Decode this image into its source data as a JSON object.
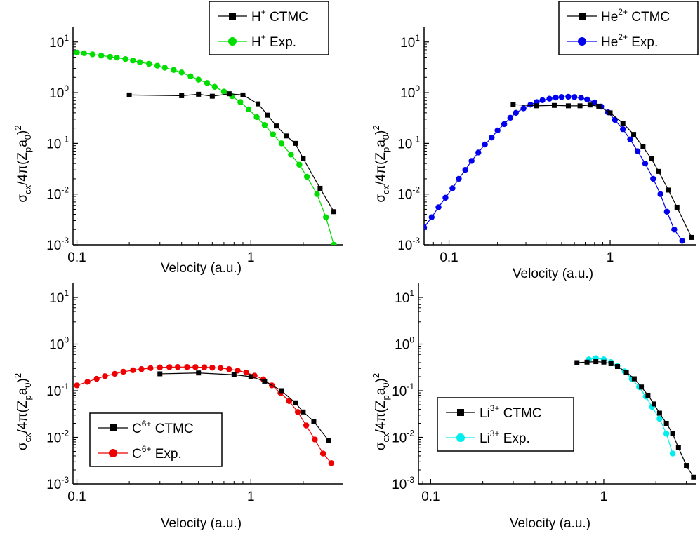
{
  "chart_data": [
    {
      "type": "line",
      "xlabel": "Velocity (a.u.)",
      "ylabel": "σcx/4π(Zpa0)2",
      "xscale": "log",
      "yscale": "log",
      "xlim": [
        0.095,
        3.4
      ],
      "ylim": [
        0.001,
        20
      ],
      "legend_position": "top-right",
      "series": [
        {
          "name": "H+ CTMC",
          "color": "#000000",
          "marker": "square",
          "x": [
            0.2,
            0.4,
            0.5,
            0.6,
            0.75,
            0.9,
            1.1,
            1.25,
            1.4,
            1.6,
            1.8,
            2.0,
            2.5,
            3.0
          ],
          "y": [
            0.9,
            0.87,
            0.93,
            0.85,
            0.95,
            0.9,
            0.6,
            0.36,
            0.22,
            0.14,
            0.1,
            0.05,
            0.013,
            0.0045
          ]
        },
        {
          "name": "H+ Exp.",
          "color": "#00dd00",
          "marker": "circle",
          "x": [
            0.1,
            0.11,
            0.123,
            0.138,
            0.155,
            0.17,
            0.19,
            0.21,
            0.23,
            0.26,
            0.29,
            0.32,
            0.36,
            0.4,
            0.45,
            0.5,
            0.56,
            0.62,
            0.7,
            0.78,
            0.87,
            0.97,
            1.08,
            1.2,
            1.34,
            1.5,
            1.7,
            1.9,
            2.1,
            2.4,
            2.7,
            3.0
          ],
          "y": [
            6.2,
            6.0,
            5.7,
            5.4,
            5.1,
            4.9,
            4.6,
            4.3,
            4.0,
            3.7,
            3.4,
            3.1,
            2.8,
            2.5,
            2.1,
            1.8,
            1.55,
            1.3,
            1.05,
            0.85,
            0.65,
            0.47,
            0.33,
            0.23,
            0.15,
            0.1,
            0.06,
            0.038,
            0.022,
            0.01,
            0.0035,
            0.001
          ]
        }
      ]
    },
    {
      "type": "line",
      "xlabel": "Velocity (a.u.)",
      "ylabel": "σcx/4π(Zpa0)2",
      "xscale": "log",
      "yscale": "log",
      "xlim": [
        0.07,
        3.4
      ],
      "ylim": [
        0.001,
        20
      ],
      "legend_position": "top-right",
      "series": [
        {
          "name": "He2+ CTMC",
          "color": "#000000",
          "marker": "square",
          "x": [
            0.25,
            0.35,
            0.45,
            0.55,
            0.65,
            0.75,
            0.85,
            1.0,
            1.2,
            1.4,
            1.6,
            1.8,
            2.0,
            2.3,
            2.6,
            3.2
          ],
          "y": [
            0.58,
            0.55,
            0.56,
            0.55,
            0.55,
            0.57,
            0.54,
            0.4,
            0.25,
            0.15,
            0.085,
            0.05,
            0.028,
            0.012,
            0.0055,
            0.0014
          ]
        },
        {
          "name": "He2+ Exp.",
          "color": "#0000ee",
          "marker": "circle",
          "x": [
            0.07,
            0.078,
            0.086,
            0.095,
            0.105,
            0.115,
            0.126,
            0.138,
            0.152,
            0.167,
            0.184,
            0.2,
            0.22,
            0.24,
            0.26,
            0.29,
            0.32,
            0.35,
            0.38,
            0.42,
            0.46,
            0.5,
            0.55,
            0.6,
            0.66,
            0.72,
            0.8,
            0.88,
            0.97,
            1.07,
            1.2,
            1.33,
            1.48,
            1.65,
            1.85,
            2.05,
            2.25,
            2.5,
            2.8
          ],
          "y": [
            0.0022,
            0.0035,
            0.0055,
            0.0085,
            0.013,
            0.02,
            0.03,
            0.045,
            0.066,
            0.095,
            0.13,
            0.18,
            0.24,
            0.32,
            0.4,
            0.49,
            0.58,
            0.65,
            0.71,
            0.76,
            0.8,
            0.82,
            0.83,
            0.82,
            0.79,
            0.73,
            0.64,
            0.53,
            0.41,
            0.29,
            0.19,
            0.12,
            0.07,
            0.04,
            0.02,
            0.01,
            0.0045,
            0.002,
            0.0012
          ]
        }
      ]
    },
    {
      "type": "line",
      "xlabel": "Velocity (a.u.)",
      "ylabel": "σcx/4π(Zpa0)2",
      "xscale": "log",
      "yscale": "log",
      "xlim": [
        0.095,
        3.4
      ],
      "ylim": [
        0.001,
        20
      ],
      "legend_position": "bottom-left",
      "series": [
        {
          "name": "C6+ CTMC",
          "color": "#000000",
          "marker": "square",
          "x": [
            0.3,
            0.5,
            0.8,
            1.0,
            1.2,
            1.5,
            1.8,
            2.0,
            2.3,
            2.8
          ],
          "y": [
            0.23,
            0.24,
            0.22,
            0.2,
            0.16,
            0.1,
            0.055,
            0.035,
            0.022,
            0.0085
          ]
        },
        {
          "name": "C6+ Exp.",
          "color": "#ee0000",
          "marker": "circle",
          "x": [
            0.1,
            0.115,
            0.13,
            0.145,
            0.165,
            0.185,
            0.21,
            0.235,
            0.265,
            0.3,
            0.34,
            0.38,
            0.43,
            0.48,
            0.54,
            0.6,
            0.67,
            0.75,
            0.84,
            0.94,
            1.05,
            1.18,
            1.32,
            1.48,
            1.66,
            1.86,
            2.08,
            2.33,
            2.6,
            2.9
          ],
          "y": [
            0.13,
            0.155,
            0.18,
            0.205,
            0.23,
            0.255,
            0.275,
            0.29,
            0.305,
            0.315,
            0.32,
            0.322,
            0.322,
            0.32,
            0.318,
            0.312,
            0.305,
            0.29,
            0.27,
            0.245,
            0.21,
            0.175,
            0.13,
            0.09,
            0.06,
            0.035,
            0.018,
            0.009,
            0.0045,
            0.0028
          ]
        }
      ]
    },
    {
      "type": "line",
      "xlabel": "Velocity (a.u.)",
      "ylabel": "σcx/4π(Zpa0)2",
      "xscale": "log",
      "yscale": "log",
      "xlim": [
        0.085,
        3.4
      ],
      "ylim": [
        0.001,
        20
      ],
      "legend_position": "bottom-left",
      "series": [
        {
          "name": "Li3+ CTMC",
          "color": "#000000",
          "marker": "square",
          "x": [
            0.7,
            0.8,
            0.9,
            1.0,
            1.1,
            1.2,
            1.35,
            1.5,
            1.65,
            1.8,
            1.95,
            2.1,
            2.3,
            2.5,
            2.7,
            3.0,
            3.3
          ],
          "y": [
            0.4,
            0.41,
            0.42,
            0.41,
            0.38,
            0.33,
            0.25,
            0.18,
            0.12,
            0.08,
            0.052,
            0.033,
            0.02,
            0.012,
            0.006,
            0.0025,
            0.0014
          ]
        },
        {
          "name": "Li3+ Exp.",
          "color": "#00eeee",
          "marker": "circle",
          "x": [
            0.82,
            0.9,
            1.0,
            1.1,
            1.2,
            1.32,
            1.45,
            1.6,
            1.75,
            1.9,
            2.1,
            2.3,
            2.5
          ],
          "y": [
            0.47,
            0.5,
            0.47,
            0.41,
            0.34,
            0.26,
            0.18,
            0.12,
            0.075,
            0.045,
            0.025,
            0.012,
            0.0045
          ]
        }
      ]
    }
  ]
}
